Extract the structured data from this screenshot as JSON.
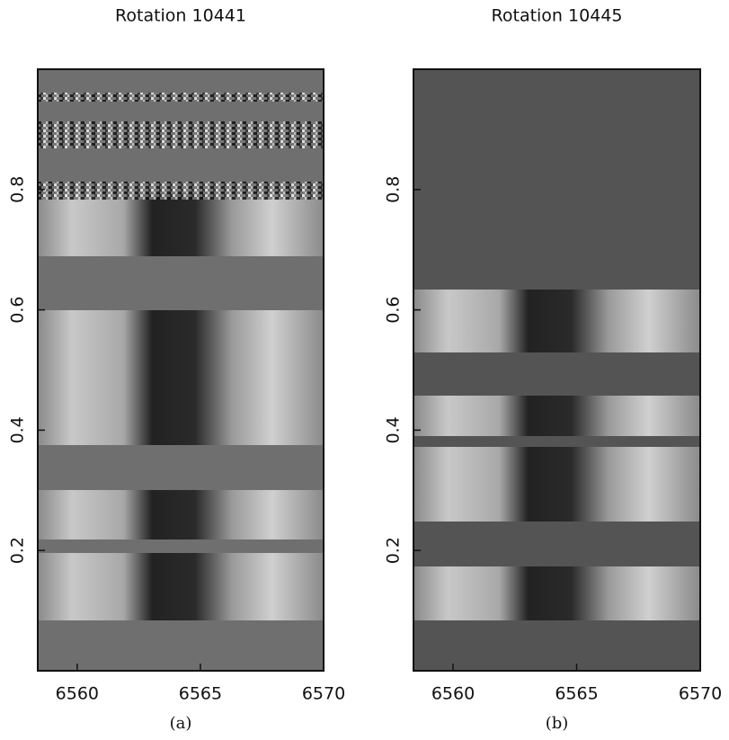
{
  "chart_data": [
    {
      "type": "image",
      "title": "Rotation 10441",
      "caption": "(a)",
      "xlim": [
        6558.4,
        6570
      ],
      "xticks": [
        6560,
        6565,
        6570
      ],
      "ylim": [
        0,
        1
      ],
      "yticks": [
        0.2,
        0.4,
        0.6,
        0.8
      ]
    },
    {
      "type": "image",
      "title": "Rotation 10445",
      "caption": "(b)",
      "xlim": [
        6558.4,
        6570
      ],
      "xticks": [
        6560,
        6565,
        6570
      ],
      "ylim": [
        0,
        1
      ],
      "yticks": [
        0.2,
        0.4,
        0.6,
        0.8
      ]
    }
  ]
}
